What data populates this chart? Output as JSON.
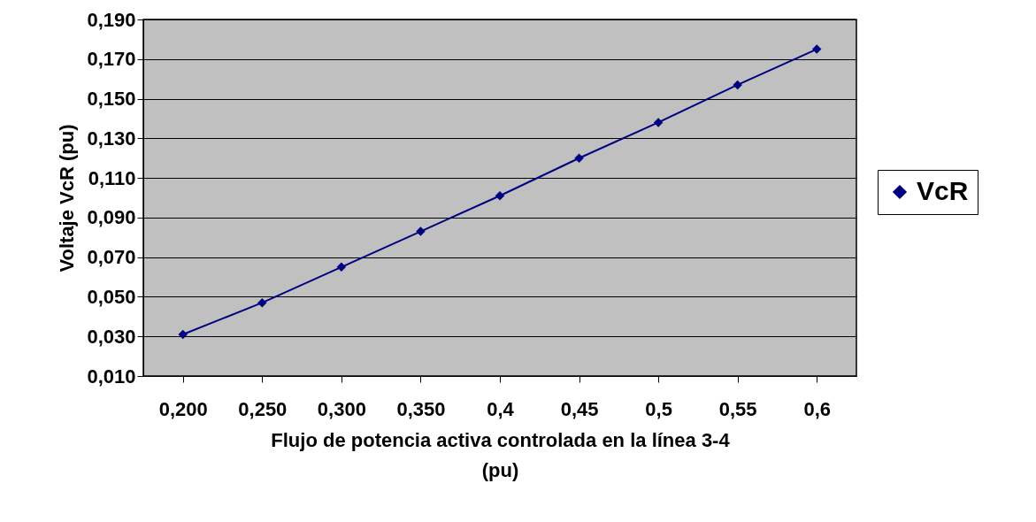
{
  "chart_data": {
    "type": "line",
    "xlabel": "Flujo de potencia activa controlada en la línea 3-4 (pu)",
    "ylabel": "Voltaje VcR (pu)",
    "categories": [
      "0,200",
      "0,250",
      "0,300",
      "0,350",
      "0,4",
      "0,45",
      "0,5",
      "0,55",
      "0,6"
    ],
    "series": [
      {
        "name": "VcR",
        "color": "#000080",
        "values": [
          0.031,
          0.047,
          0.065,
          0.083,
          0.101,
          0.12,
          0.138,
          0.157,
          0.175
        ]
      }
    ],
    "ylim": [
      0.01,
      0.19
    ],
    "yticks": [
      {
        "value": 0.01,
        "label": "0,010"
      },
      {
        "value": 0.03,
        "label": "0,030"
      },
      {
        "value": 0.05,
        "label": "0,050"
      },
      {
        "value": 0.07,
        "label": "0,070"
      },
      {
        "value": 0.09,
        "label": "0,090"
      },
      {
        "value": 0.11,
        "label": "0,110"
      },
      {
        "value": 0.13,
        "label": "0,130"
      },
      {
        "value": 0.15,
        "label": "0,150"
      },
      {
        "value": 0.17,
        "label": "0,170"
      },
      {
        "value": 0.19,
        "label": "0,190"
      }
    ],
    "grid": "y",
    "legend": "right",
    "marker": "diamond",
    "line_style": "solid"
  }
}
